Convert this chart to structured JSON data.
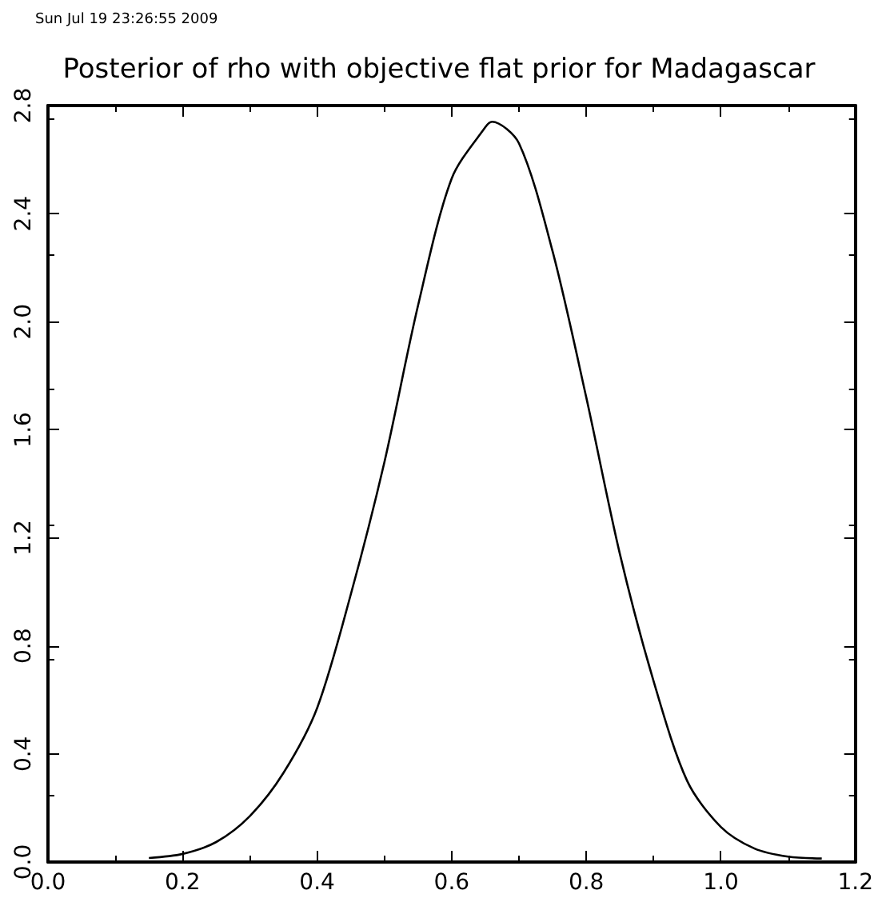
{
  "chart_data": {
    "type": "line",
    "title": "Posterior of rho with objective flat prior for Madagascar",
    "annotations": [
      "Sun Jul 19 23:26:55 2009"
    ],
    "x": [
      0.15,
      0.2,
      0.25,
      0.3,
      0.35,
      0.4,
      0.45,
      0.5,
      0.55,
      0.6,
      0.65,
      0.66,
      0.7,
      0.75,
      0.8,
      0.85,
      0.9,
      0.95,
      1.0,
      1.05,
      1.1,
      1.15
    ],
    "series": [
      {
        "color": "#000000",
        "values": [
          0.015,
          0.03,
          0.074,
          0.17,
          0.33,
          0.57,
          0.99,
          1.48,
          2.06,
          2.53,
          2.72,
          2.74,
          2.66,
          2.26,
          1.72,
          1.14,
          0.67,
          0.3,
          0.13,
          0.05,
          0.02,
          0.013
        ]
      }
    ],
    "xlim": [
      0,
      1.2
    ],
    "ylim": [
      0,
      2.8
    ],
    "xticks": [
      {
        "value": 0,
        "label": "0.0"
      },
      {
        "value": 0.2,
        "label": "0.2"
      },
      {
        "value": 0.4,
        "label": "0.4"
      },
      {
        "value": 0.6,
        "label": "0.6"
      },
      {
        "value": 0.8,
        "label": "0.8"
      },
      {
        "value": 1.0,
        "label": "1.0"
      },
      {
        "value": 1.2,
        "label": "1.2"
      }
    ],
    "yticks": [
      {
        "value": 0,
        "label": "0.0"
      },
      {
        "value": 0.4,
        "label": "0.4"
      },
      {
        "value": 0.8,
        "label": "0.8"
      },
      {
        "value": 1.2,
        "label": "1.2"
      },
      {
        "value": 1.6,
        "label": "1.6"
      },
      {
        "value": 2.0,
        "label": "2.0"
      },
      {
        "value": 2.4,
        "label": "2.4"
      },
      {
        "value": 2.8,
        "label": "2.8"
      }
    ],
    "grid": false,
    "marker": "none",
    "line_style": "solid"
  }
}
